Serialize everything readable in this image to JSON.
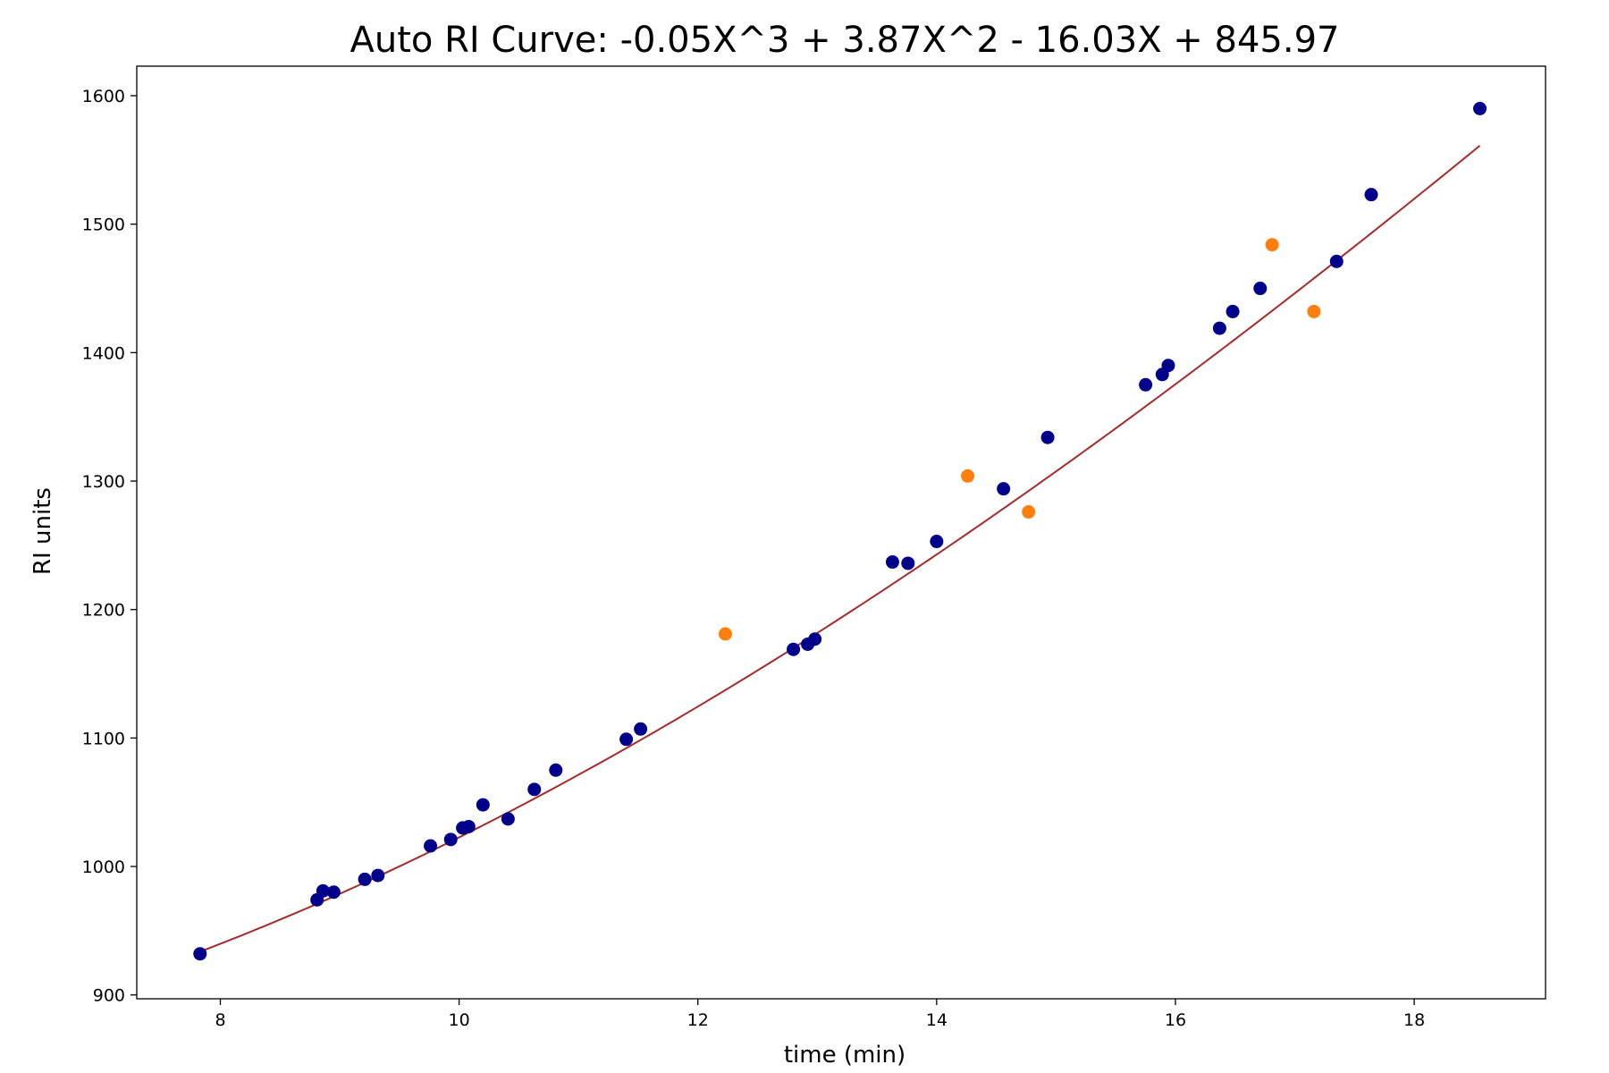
{
  "chart_data": {
    "type": "scatter",
    "title": "Auto RI Curve: -0.05X^3 + 3.87X^2 - 16.03X + 845.97",
    "xlabel": "time (min)",
    "ylabel": "RI units",
    "xlim": [
      7.3,
      19.1
    ],
    "ylim": [
      897,
      1623
    ],
    "x_ticks": [
      8,
      10,
      12,
      14,
      16,
      18
    ],
    "y_ticks": [
      900,
      1000,
      1100,
      1200,
      1300,
      1400,
      1500,
      1600
    ],
    "grid": false,
    "legend": false,
    "fit_curve": {
      "coefficients": [
        -0.05,
        3.87,
        -16.03,
        845.97
      ],
      "x_range": [
        7.83,
        18.55
      ],
      "color": "#a52a2a"
    },
    "series": [
      {
        "color": "#00008b",
        "points": [
          [
            7.83,
            932
          ],
          [
            8.81,
            974
          ],
          [
            8.86,
            981
          ],
          [
            8.95,
            980
          ],
          [
            9.21,
            990
          ],
          [
            9.32,
            993
          ],
          [
            9.76,
            1016
          ],
          [
            9.93,
            1021
          ],
          [
            10.03,
            1030
          ],
          [
            10.08,
            1031
          ],
          [
            10.2,
            1048
          ],
          [
            10.41,
            1037
          ],
          [
            10.63,
            1060
          ],
          [
            10.81,
            1075
          ],
          [
            11.4,
            1099
          ],
          [
            11.52,
            1107
          ],
          [
            12.8,
            1169
          ],
          [
            12.92,
            1173
          ],
          [
            12.98,
            1177
          ],
          [
            13.63,
            1237
          ],
          [
            13.76,
            1236
          ],
          [
            14.0,
            1253
          ],
          [
            14.56,
            1294
          ],
          [
            14.93,
            1334
          ],
          [
            15.75,
            1375
          ],
          [
            15.89,
            1383
          ],
          [
            15.94,
            1390
          ],
          [
            16.37,
            1419
          ],
          [
            16.48,
            1432
          ],
          [
            16.71,
            1450
          ],
          [
            17.35,
            1471
          ],
          [
            17.64,
            1523
          ],
          [
            18.55,
            1590
          ]
        ]
      },
      {
        "color": "#ff7f0e",
        "points": [
          [
            12.23,
            1181
          ],
          [
            14.26,
            1304
          ],
          [
            14.77,
            1276
          ],
          [
            16.81,
            1484
          ],
          [
            17.16,
            1432
          ]
        ]
      }
    ]
  }
}
